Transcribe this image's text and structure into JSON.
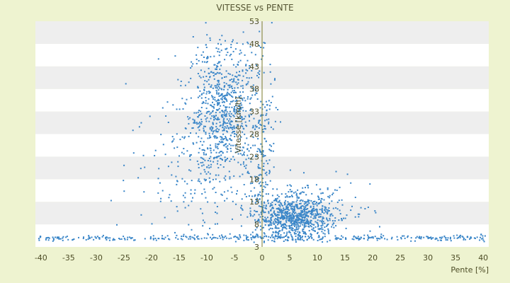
{
  "chart_data": {
    "type": "scatter",
    "title": "VITESSE vs PENTE",
    "xlabel": "Pente [%]",
    "ylabel": "Vitesse [km/h]",
    "xlim": [
      -41,
      41
    ],
    "ylim": [
      3,
      53
    ],
    "xticks": [
      -40,
      -35,
      -30,
      -25,
      -20,
      -15,
      -10,
      -5,
      0,
      5,
      10,
      15,
      20,
      25,
      30,
      35,
      40
    ],
    "yticks": [
      3,
      8,
      13,
      18,
      23,
      28,
      33,
      38,
      43,
      48,
      53
    ],
    "grid": "alternating horizontal bands",
    "legend": "none",
    "colors": {
      "points": "#3a86c8",
      "background": "#eef3d0",
      "band_light": "#ffffff",
      "band_dark": "#eeeeee",
      "axis": "#7a7a2a"
    },
    "point_clusters": [
      {
        "desc": "descent, high speed",
        "x_mean": -7,
        "x_sd": 3.2,
        "y_mean": 33,
        "y_sd": 7.5,
        "n": 800
      },
      {
        "desc": "steep descent spread",
        "x_mean": -12,
        "x_sd": 6,
        "y_mean": 22,
        "y_sd": 8,
        "n": 180
      },
      {
        "desc": "climb, low speed",
        "x_mean": 6,
        "x_sd": 3.2,
        "y_mean": 9.5,
        "y_sd": 2.2,
        "n": 700
      },
      {
        "desc": "climb spread",
        "x_mean": 8,
        "x_sd": 6,
        "y_mean": 11,
        "y_sd": 3.5,
        "n": 200
      },
      {
        "desc": "near-zero speed row",
        "x_min": -41,
        "x_max": 41,
        "y_mean": 5,
        "y_sd": 0.35,
        "n": 400
      },
      {
        "desc": "flat ground column",
        "x_mean": 0,
        "x_sd": 1.2,
        "y_mean": 20,
        "y_sd": 12,
        "n": 200
      }
    ]
  }
}
